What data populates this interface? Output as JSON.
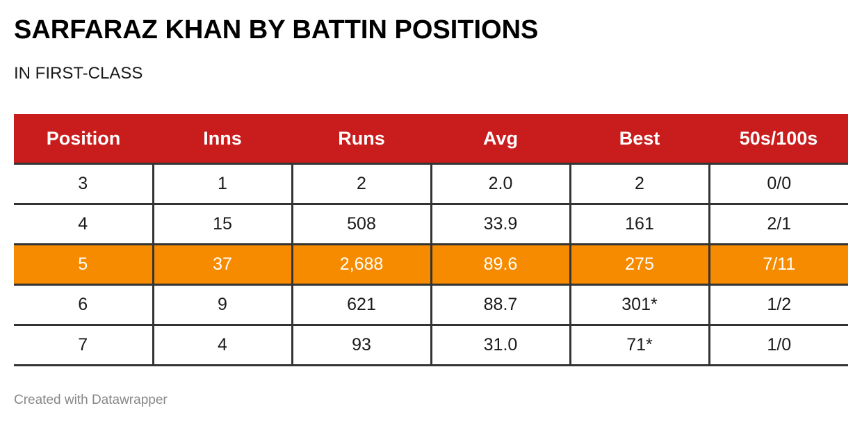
{
  "header": {
    "title": "SARFARAZ KHAN BY BATTIN POSITIONS",
    "subtitle": "IN FIRST-CLASS"
  },
  "colors": {
    "header_bg": "#c91c1c",
    "highlight_bg": "#f68b00"
  },
  "chart_data": {
    "type": "table",
    "columns": [
      "Position",
      "Inns",
      "Runs",
      "Avg",
      "Best",
      "50s/100s"
    ],
    "rows": [
      [
        "3",
        "1",
        "2",
        "2.0",
        "2",
        "0/0"
      ],
      [
        "4",
        "15",
        "508",
        "33.9",
        "161",
        "2/1"
      ],
      [
        "5",
        "37",
        "2,688",
        "89.6",
        "275",
        "7/11"
      ],
      [
        "6",
        "9",
        "621",
        "88.7",
        "301*",
        "1/2"
      ],
      [
        "7",
        "4",
        "93",
        "31.0",
        "71*",
        "1/0"
      ]
    ],
    "highlighted_row": 2
  },
  "footer": {
    "credit": "Created with Datawrapper"
  }
}
